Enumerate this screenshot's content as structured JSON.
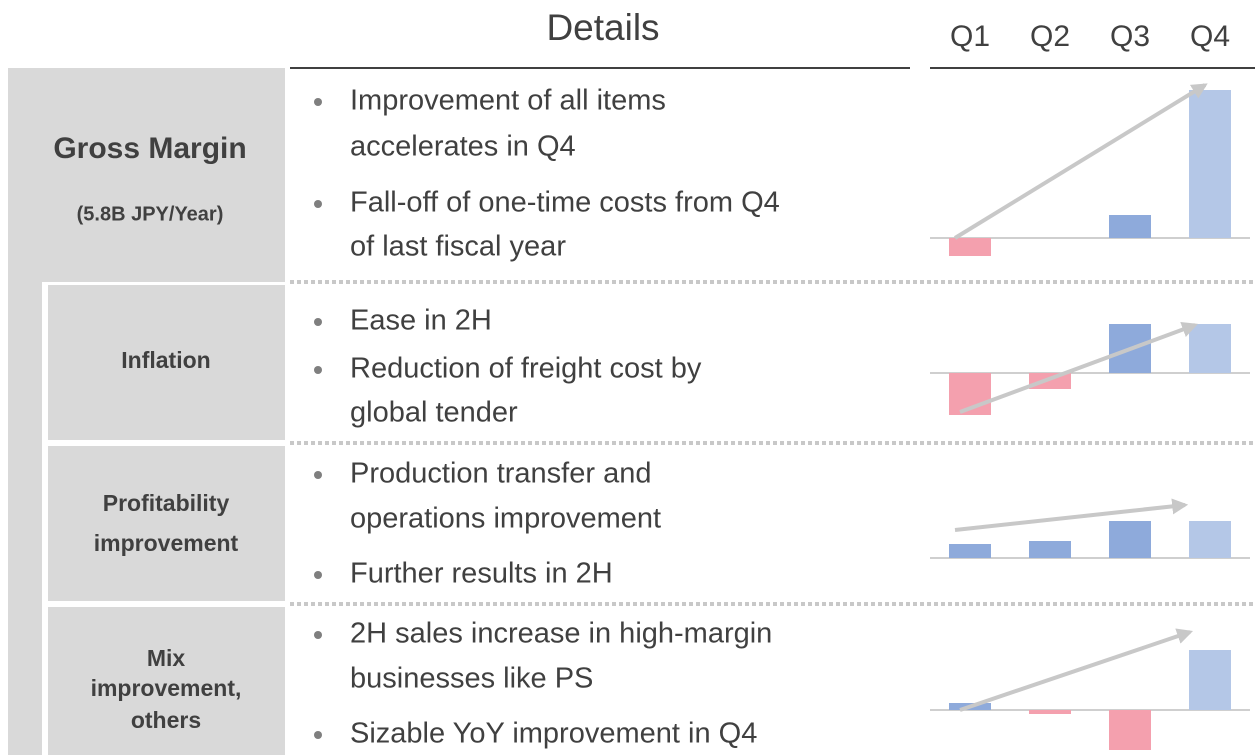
{
  "header": {
    "title": "Details",
    "quarters": [
      "Q1",
      "Q2",
      "Q3",
      "Q4"
    ]
  },
  "rows": [
    {
      "label": [
        "Gross Margin"
      ],
      "sublabel": "(5.8B JPY/Year)",
      "bullets": [
        [
          "Improvement of all items",
          "accelerates in Q4"
        ],
        [
          "Fall-off of one-time costs from Q4",
          "of last fiscal year"
        ]
      ],
      "chart": {
        "type": "bar",
        "values": [
          -18,
          0,
          23,
          148
        ],
        "colors": [
          "#f4a0ae",
          "#8eaadb",
          "#8eaadb",
          "#b4c7e7"
        ]
      }
    },
    {
      "label": [
        "Inflation"
      ],
      "bullets": [
        [
          "Ease in 2H"
        ],
        [
          "Reduction of freight cost by",
          "global tender"
        ]
      ],
      "chart": {
        "type": "bar",
        "values": [
          -42,
          -16,
          49,
          49
        ],
        "colors": [
          "#f4a0ae",
          "#f4a0ae",
          "#8eaadb",
          "#b4c7e7"
        ]
      }
    },
    {
      "label": [
        "Profitability",
        "improvement"
      ],
      "bullets": [
        [
          "Production transfer and",
          "operations improvement"
        ],
        [
          "Further results in 2H"
        ]
      ],
      "chart": {
        "type": "bar",
        "values": [
          14,
          17,
          37,
          37
        ],
        "colors": [
          "#8eaadb",
          "#8eaadb",
          "#8eaadb",
          "#b4c7e7"
        ]
      }
    },
    {
      "label": [
        "Mix",
        "improvement,",
        "others"
      ],
      "bullets": [
        [
          "2H sales increase in high-margin",
          "businesses like PS"
        ],
        [
          "Sizable YoY improvement in Q4"
        ]
      ],
      "chart": {
        "type": "bar",
        "values": [
          7,
          -4,
          -40,
          60
        ],
        "colors": [
          "#8eaadb",
          "#f4a0ae",
          "#f4a0ae",
          "#b4c7e7"
        ]
      }
    }
  ]
}
